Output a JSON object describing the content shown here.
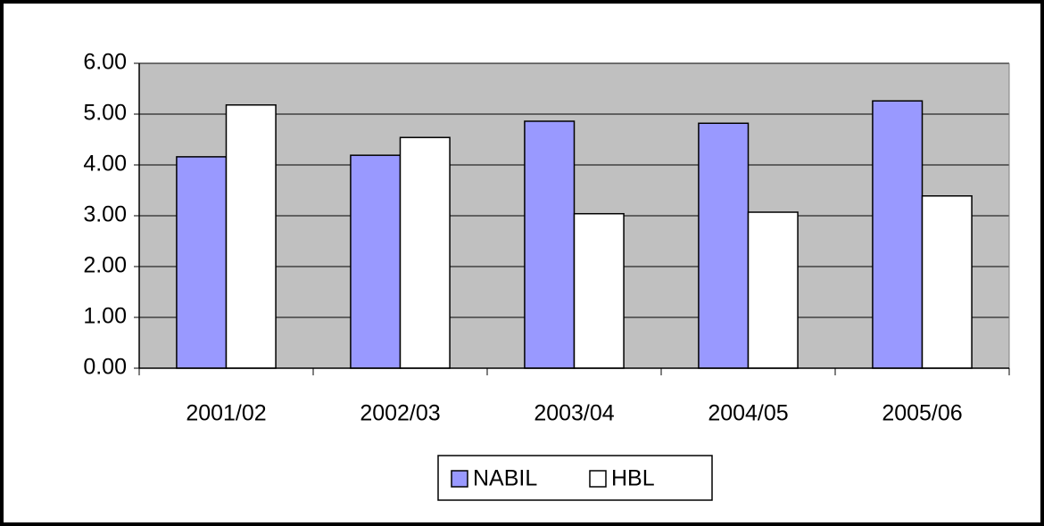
{
  "chart_data": {
    "type": "bar",
    "categories": [
      "2001/02",
      "2002/03",
      "2003/04",
      "2004/05",
      "2005/06"
    ],
    "series": [
      {
        "name": "NABIL",
        "color": "#9999ff",
        "values": [
          4.16,
          4.19,
          4.86,
          4.82,
          5.26
        ]
      },
      {
        "name": "HBL",
        "color": "#ffffff",
        "values": [
          5.18,
          4.54,
          3.04,
          3.07,
          3.39
        ]
      }
    ],
    "ylim": [
      0,
      6
    ],
    "yticks": [
      {
        "value": 0,
        "label": "0.00"
      },
      {
        "value": 1,
        "label": "1.00"
      },
      {
        "value": 2,
        "label": "2.00"
      },
      {
        "value": 3,
        "label": "3.00"
      },
      {
        "value": 4,
        "label": "4.00"
      },
      {
        "value": 5,
        "label": "5.00"
      },
      {
        "value": 6,
        "label": "6.00"
      }
    ],
    "grid": true,
    "legend": "bottom"
  }
}
